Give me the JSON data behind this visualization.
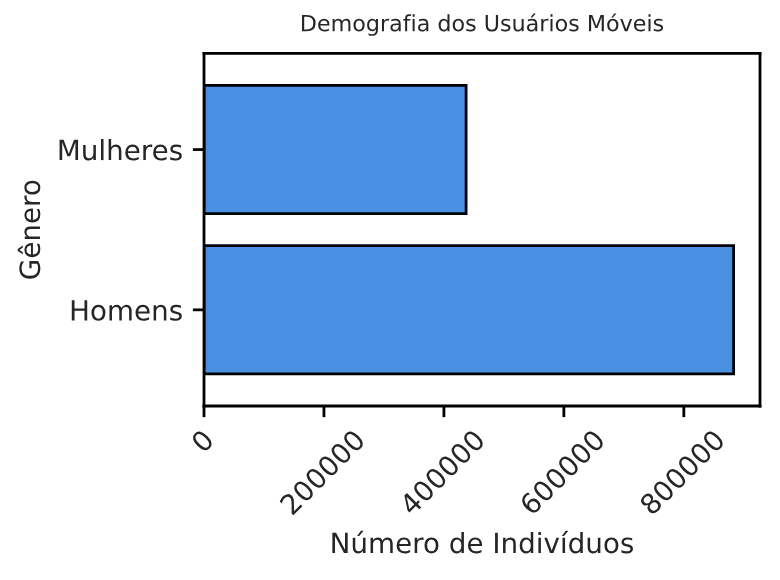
{
  "chart_data": {
    "type": "bar",
    "orientation": "horizontal",
    "title": "Demografia dos Usuários Móveis",
    "xlabel": "Número de Indivíduos",
    "ylabel": "Gênero",
    "categories": [
      "Mulheres",
      "Homens"
    ],
    "values": [
      437000,
      883000
    ],
    "color": "#4a90e2",
    "xlim": [
      0,
      927000
    ],
    "xticks": [
      0,
      200000,
      400000,
      600000,
      800000
    ],
    "grid": false,
    "legend": false
  }
}
